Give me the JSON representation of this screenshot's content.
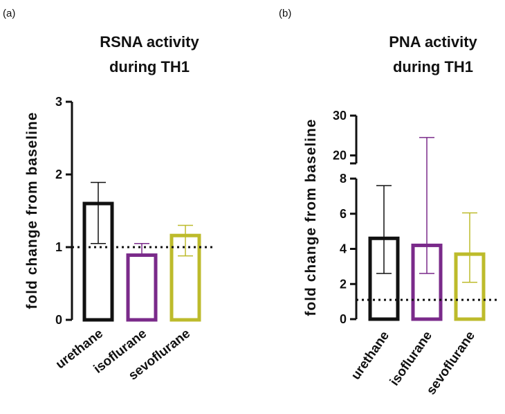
{
  "colors": {
    "urethane": "#111111",
    "isoflurane": "#7a2a8a",
    "sevoflurane": "#bdbb2b",
    "axis": "#111111"
  },
  "chart_data": [
    {
      "type": "bar",
      "panel": "(a)",
      "title_lines": [
        "RSNA activity",
        "during TH1"
      ],
      "ylabel": "fold change from baseline",
      "xlabel": "",
      "categories": [
        "urethane",
        "isoflurane",
        "sevoflurane"
      ],
      "values": [
        1.6,
        0.89,
        1.16
      ],
      "error_low": [
        1.05,
        0.89,
        0.88
      ],
      "error_high": [
        1.89,
        1.05,
        1.3
      ],
      "ylim": [
        0,
        3
      ],
      "yticks": [
        "0",
        "1",
        "2",
        "3"
      ],
      "reference_line": 1.0
    },
    {
      "type": "bar",
      "panel": "(b)",
      "title_lines": [
        "PNA activity",
        "during TH1"
      ],
      "ylabel": "fold change from baseline",
      "xlabel": "",
      "categories": [
        "urethane",
        "isoflurane",
        "sevoflurane"
      ],
      "values": [
        4.6,
        4.2,
        3.7
      ],
      "error_low": [
        2.6,
        2.6,
        2.1
      ],
      "error_high": [
        7.6,
        24.5,
        6.05
      ],
      "ylim": [
        0,
        30
      ],
      "axis_break": [
        8,
        18
      ],
      "yticks": [
        "0",
        "2",
        "4",
        "6",
        "8",
        "20",
        "30"
      ],
      "reference_line": 1.1
    }
  ]
}
